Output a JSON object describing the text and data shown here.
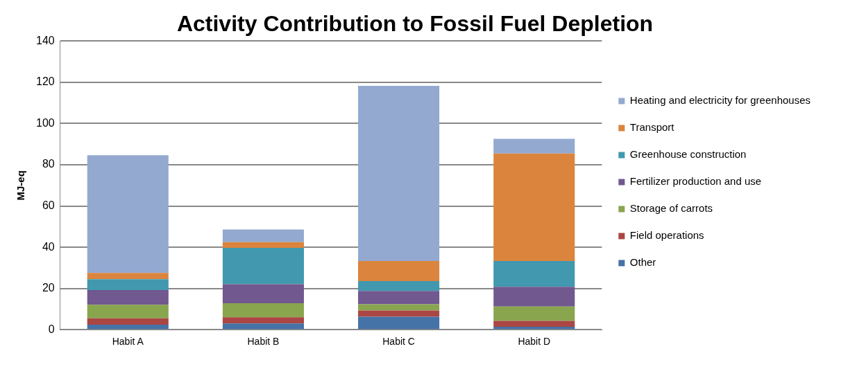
{
  "chart_data": {
    "type": "bar",
    "stacked": true,
    "title": "Activity Contribution to Fossil Fuel Depletion",
    "ylabel": "MJ-eq",
    "categories": [
      "Habit A",
      "Habit B",
      "Habit C",
      "Habit D"
    ],
    "series": [
      {
        "name": "Other",
        "color": "#4572a7",
        "values": [
          2.4,
          3.0,
          6.3,
          1.4
        ]
      },
      {
        "name": "Field operations",
        "color": "#aa4643",
        "values": [
          3.1,
          3.0,
          3.0,
          2.9
        ]
      },
      {
        "name": "Storage of carrots",
        "color": "#89a54e",
        "values": [
          6.6,
          6.8,
          3.0,
          6.9
        ]
      },
      {
        "name": "Fertilizer production and use",
        "color": "#71588f",
        "values": [
          7.1,
          9.3,
          6.5,
          9.6
        ]
      },
      {
        "name": "Greenhouse construction",
        "color": "#4198af",
        "values": [
          5.3,
          17.6,
          4.8,
          12.5
        ]
      },
      {
        "name": "Transport",
        "color": "#db843d",
        "values": [
          3.0,
          2.8,
          9.7,
          52.2
        ]
      },
      {
        "name": "Heating and electricity for greenhouses",
        "color": "#93a9cf",
        "values": [
          57.1,
          6.1,
          85.0,
          7.1
        ]
      }
    ],
    "ylim": [
      0,
      140
    ],
    "yticks": [
      0,
      20,
      40,
      60,
      80,
      100,
      120,
      140
    ],
    "grid": "y",
    "legend": "right"
  }
}
